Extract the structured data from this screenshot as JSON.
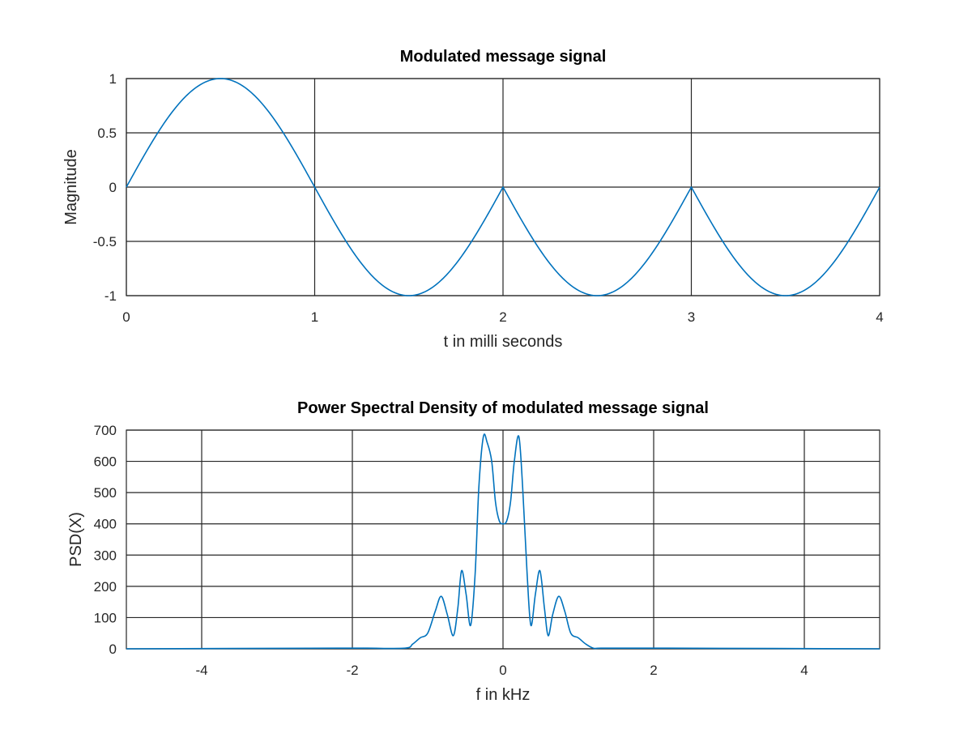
{
  "chart_data": [
    {
      "type": "line",
      "title": "Modulated message signal",
      "xlabel": "t in milli seconds",
      "ylabel": "Magnitude",
      "xlim": [
        0,
        4
      ],
      "ylim": [
        -1,
        1
      ],
      "xticks": [
        0,
        1,
        2,
        3,
        4
      ],
      "yticks": [
        -1,
        -0.5,
        0,
        0.5,
        1
      ],
      "xtick_labels": [
        "0",
        "1",
        "2",
        "3",
        "4"
      ],
      "ytick_labels": [
        "-1",
        "-0.5",
        "0",
        "0.5",
        "1"
      ],
      "grid": true,
      "color": "#0072bd",
      "series": [
        {
          "x": [
            0,
            0.25,
            0.5,
            0.75,
            1,
            1.25,
            1.5,
            1.75,
            2,
            2.25,
            2.5,
            2.75,
            3,
            3.25,
            3.5,
            3.75,
            4
          ],
          "y": [
            0,
            0.707,
            1,
            0.707,
            0,
            -0.707,
            -1,
            -0.707,
            0,
            -0.707,
            -1,
            -0.707,
            0,
            -0.707,
            -1,
            -0.707,
            0
          ]
        }
      ]
    },
    {
      "type": "line",
      "title": "Power Spectral Density of modulated message signal",
      "xlabel": "f in kHz",
      "ylabel": "PSD(X)",
      "xlim": [
        -5,
        5
      ],
      "ylim": [
        0,
        700
      ],
      "xticks": [
        -4,
        -2,
        0,
        2,
        4
      ],
      "yticks": [
        0,
        100,
        200,
        300,
        400,
        500,
        600,
        700
      ],
      "xtick_labels": [
        "-4",
        "-2",
        "0",
        "2",
        "4"
      ],
      "ytick_labels": [
        "0",
        "100",
        "200",
        "300",
        "400",
        "500",
        "600",
        "700"
      ],
      "grid": true,
      "color": "#0072bd",
      "series": [
        {
          "x": [
            -5,
            -2.2,
            -1.8,
            -1.3,
            -1.2,
            -1.1,
            -1.0,
            -0.9,
            -0.82,
            -0.74,
            -0.66,
            -0.6,
            -0.55,
            -0.49,
            -0.43,
            -0.37,
            -0.32,
            -0.26,
            -0.21,
            -0.15,
            -0.1,
            -0.05,
            0,
            0.05,
            0.1,
            0.15,
            0.21,
            0.26,
            0.32,
            0.37,
            0.43,
            0.49,
            0.55,
            0.6,
            0.66,
            0.74,
            0.82,
            0.9,
            1.0,
            1.1,
            1.2,
            1.3,
            1.8,
            2.2,
            5
          ],
          "y": [
            0,
            2,
            2,
            2,
            15,
            35,
            50,
            120,
            168,
            110,
            42,
            130,
            250,
            175,
            75,
            240,
            520,
            680,
            660,
            600,
            470,
            410,
            400,
            410,
            470,
            600,
            680,
            520,
            240,
            75,
            175,
            250,
            130,
            42,
            110,
            168,
            120,
            50,
            35,
            15,
            2,
            2,
            2,
            2,
            0
          ]
        }
      ]
    }
  ]
}
